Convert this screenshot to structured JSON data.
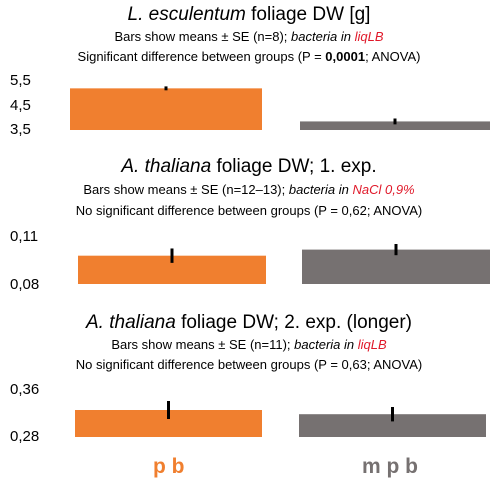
{
  "colors": {
    "pb": "#f07f2f",
    "mpb": "#767171",
    "err": "#000000",
    "red": "#e0192a"
  },
  "groups": [
    {
      "label": "p b",
      "color": "#f07f2f"
    },
    {
      "label": "m p b",
      "color": "#767171"
    }
  ],
  "panels": [
    {
      "title_italic": "L. esculentum",
      "title_rest": " foliage DW [g]",
      "line1_plain": "Bars show means ± SE (n=8); ",
      "line1_ital": "bacteria in ",
      "line1_red": "liqLB",
      "line2_pre": "Significant difference between groups (P = ",
      "line2_bold": "0,0001",
      "line2_post": "; ANOVA)",
      "ticks": [
        "5,5",
        "4,5",
        "3,5"
      ]
    },
    {
      "title_italic": "A. thaliana",
      "title_rest": " foliage DW; 1. exp.",
      "line1_plain": "Bars show means ± SE (n=12–13); ",
      "line1_ital": "bacteria in ",
      "line1_red": "NaCl 0,9%",
      "line2_pre": "No significant difference between groups (P = 0,62; ANOVA)",
      "line2_bold": "",
      "line2_post": "",
      "ticks": [
        "0,11",
        "0,08"
      ]
    },
    {
      "title_italic": "A. thaliana",
      "title_rest": " foliage DW; 2. exp. (longer)",
      "line1_plain": "Bars show means ± SE (n=11); ",
      "line1_ital": "bacteria in ",
      "line1_red": "liqLB",
      "line2_pre": "No significant difference between groups (P = 0,63; ANOVA)",
      "line2_bold": "",
      "line2_post": "",
      "ticks": [
        "0,36",
        "0,28"
      ]
    }
  ],
  "chart_data": [
    {
      "type": "bar",
      "categories": [
        "p b",
        "m p b"
      ],
      "values": [
        5.2,
        3.85
      ],
      "errors": [
        0.08,
        0.12
      ],
      "ylim": [
        3.5,
        5.5
      ],
      "title": "L. esculentum foliage DW [g]",
      "xlabel": "",
      "ylabel": ""
    },
    {
      "type": "bar",
      "categories": [
        "p b",
        "m p b"
      ],
      "values": [
        0.0977,
        0.1015
      ],
      "errors": [
        0.0045,
        0.0035
      ],
      "ylim": [
        0.08,
        0.11
      ],
      "title": "A. thaliana foliage DW; 1. exp.",
      "xlabel": "",
      "ylabel": ""
    },
    {
      "type": "bar",
      "categories": [
        "p b",
        "m p b"
      ],
      "values": [
        0.325,
        0.318
      ],
      "errors": [
        0.015,
        0.012
      ],
      "ylim": [
        0.28,
        0.36
      ],
      "title": "A. thaliana foliage DW; 2. exp. (longer)",
      "xlabel": "",
      "ylabel": ""
    }
  ]
}
